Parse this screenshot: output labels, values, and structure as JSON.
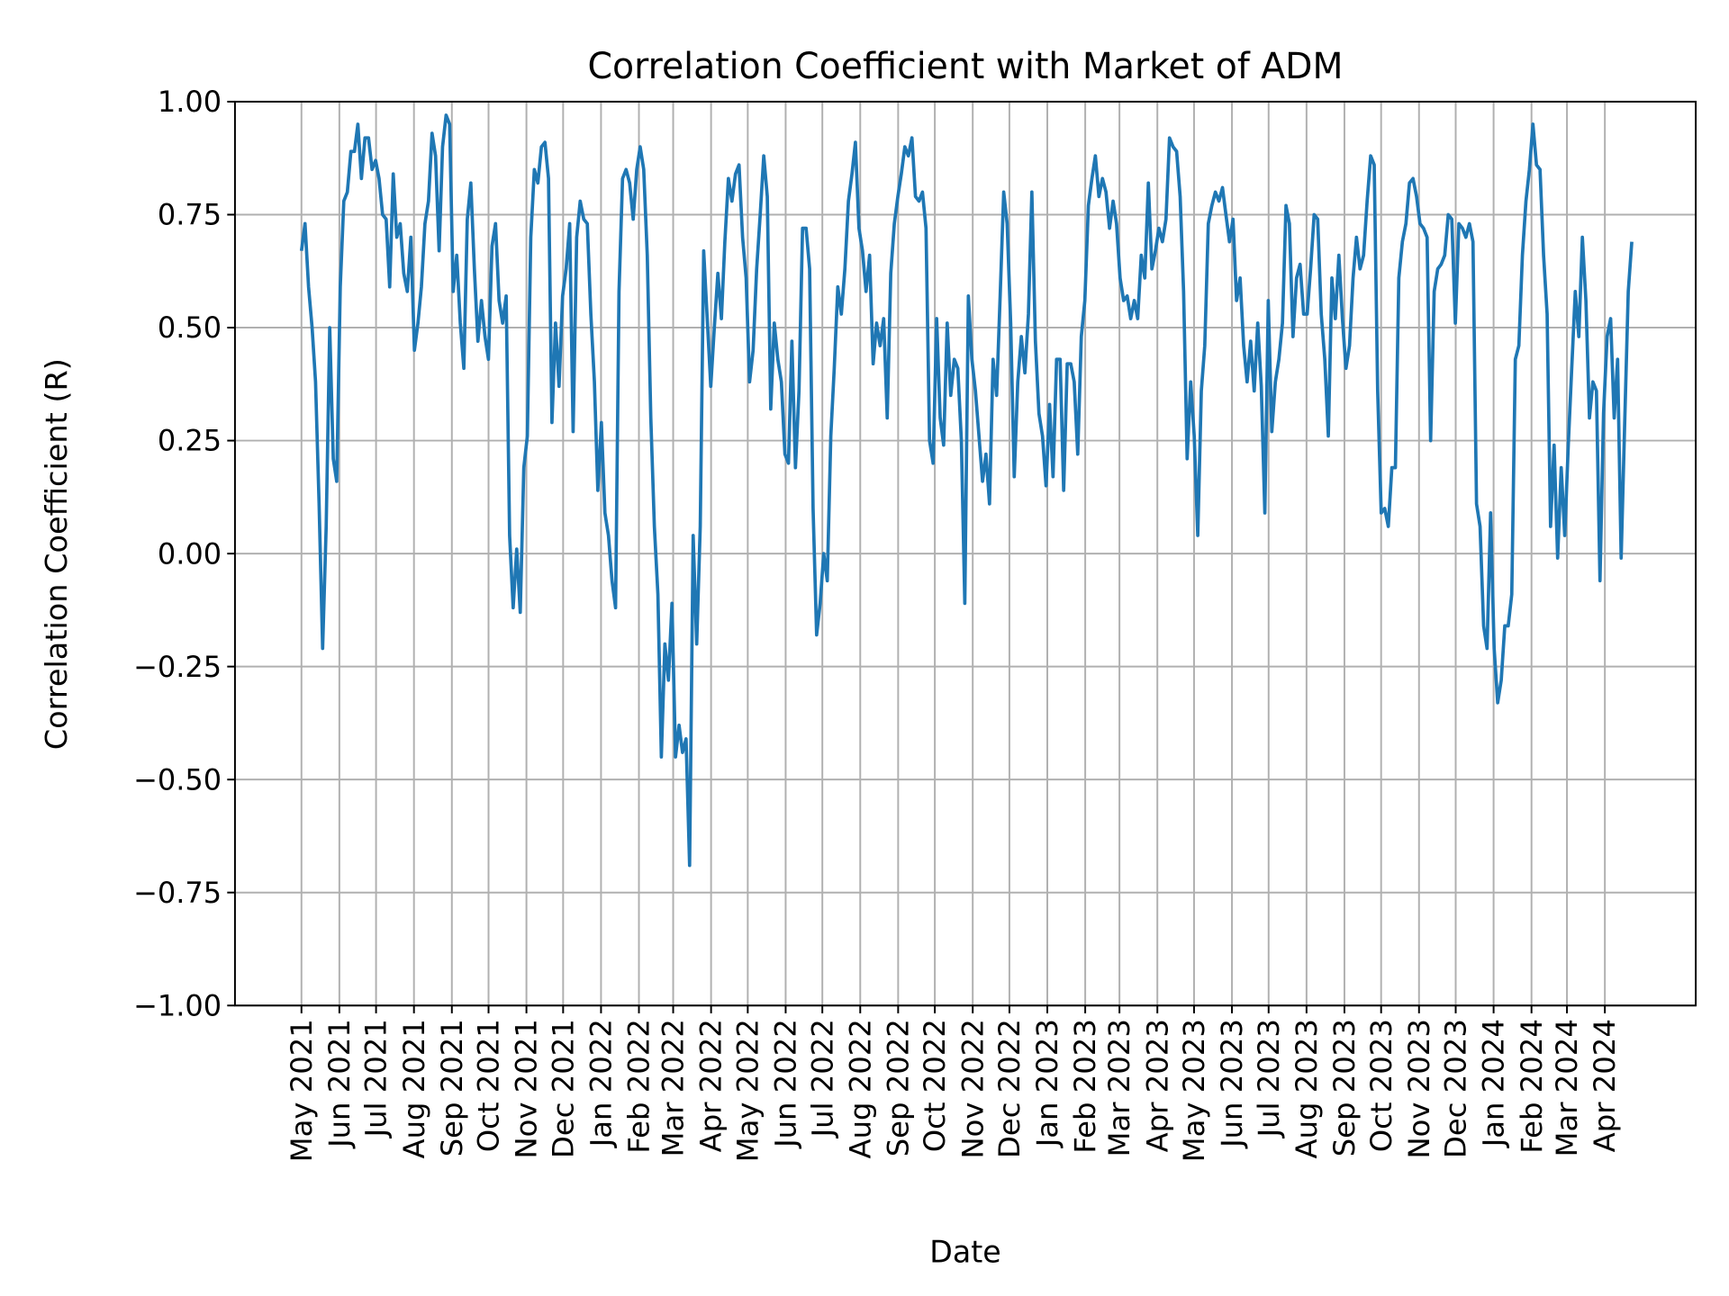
{
  "chart_data": {
    "type": "line",
    "title": "Correlation Coefficient with Market of ADM",
    "xlabel": "Date",
    "ylabel": "Correlation Coefficient (R)",
    "ylim": [
      -1.0,
      1.0
    ],
    "grid": true,
    "line_color": "#1f77b4",
    "yticks": [
      {
        "value": 1.0,
        "label": "1.00"
      },
      {
        "value": 0.75,
        "label": "0.75"
      },
      {
        "value": 0.5,
        "label": "0.50"
      },
      {
        "value": 0.25,
        "label": "0.25"
      },
      {
        "value": 0.0,
        "label": "0.00"
      },
      {
        "value": -0.25,
        "label": "−0.25"
      },
      {
        "value": -0.5,
        "label": "−0.50"
      },
      {
        "value": -0.75,
        "label": "−0.75"
      },
      {
        "value": -1.0,
        "label": "−1.00"
      }
    ],
    "xticks": [
      {
        "date": "2021-05-01",
        "label": "May 2021"
      },
      {
        "date": "2021-06-01",
        "label": "Jun 2021"
      },
      {
        "date": "2021-07-01",
        "label": "Jul 2021"
      },
      {
        "date": "2021-08-01",
        "label": "Aug 2021"
      },
      {
        "date": "2021-09-01",
        "label": "Sep 2021"
      },
      {
        "date": "2021-10-01",
        "label": "Oct 2021"
      },
      {
        "date": "2021-11-01",
        "label": "Nov 2021"
      },
      {
        "date": "2021-12-01",
        "label": "Dec 2021"
      },
      {
        "date": "2022-01-01",
        "label": "Jan 2022"
      },
      {
        "date": "2022-02-01",
        "label": "Feb 2022"
      },
      {
        "date": "2022-03-01",
        "label": "Mar 2022"
      },
      {
        "date": "2022-04-01",
        "label": "Apr 2022"
      },
      {
        "date": "2022-05-01",
        "label": "May 2022"
      },
      {
        "date": "2022-06-01",
        "label": "Jun 2022"
      },
      {
        "date": "2022-07-01",
        "label": "Jul 2022"
      },
      {
        "date": "2022-08-01",
        "label": "Aug 2022"
      },
      {
        "date": "2022-09-01",
        "label": "Sep 2022"
      },
      {
        "date": "2022-10-01",
        "label": "Oct 2022"
      },
      {
        "date": "2022-11-01",
        "label": "Nov 2022"
      },
      {
        "date": "2022-12-01",
        "label": "Dec 2022"
      },
      {
        "date": "2023-01-01",
        "label": "Jan 2023"
      },
      {
        "date": "2023-02-01",
        "label": "Feb 2023"
      },
      {
        "date": "2023-03-01",
        "label": "Mar 2023"
      },
      {
        "date": "2023-04-01",
        "label": "Apr 2023"
      },
      {
        "date": "2023-05-01",
        "label": "May 2023"
      },
      {
        "date": "2023-06-01",
        "label": "Jun 2023"
      },
      {
        "date": "2023-07-01",
        "label": "Jul 2023"
      },
      {
        "date": "2023-08-01",
        "label": "Aug 2023"
      },
      {
        "date": "2023-09-01",
        "label": "Sep 2023"
      },
      {
        "date": "2023-10-01",
        "label": "Oct 2023"
      },
      {
        "date": "2023-11-01",
        "label": "Nov 2023"
      },
      {
        "date": "2023-12-01",
        "label": "Dec 2023"
      },
      {
        "date": "2024-01-01",
        "label": "Jan 2024"
      },
      {
        "date": "2024-02-01",
        "label": "Feb 2024"
      },
      {
        "date": "2024-03-01",
        "label": "Mar 2024"
      },
      {
        "date": "2024-04-01",
        "label": "Apr 2024"
      }
    ],
    "series": [
      {
        "name": "R",
        "x_start": "2021-05-01",
        "x_end": "2024-04-23",
        "values": [
          0.67,
          0.73,
          0.59,
          0.5,
          0.38,
          0.11,
          -0.21,
          0.06,
          0.5,
          0.21,
          0.16,
          0.59,
          0.78,
          0.8,
          0.89,
          0.89,
          0.95,
          0.83,
          0.92,
          0.92,
          0.85,
          0.87,
          0.83,
          0.75,
          0.74,
          0.59,
          0.84,
          0.7,
          0.73,
          0.62,
          0.58,
          0.7,
          0.45,
          0.51,
          0.59,
          0.73,
          0.78,
          0.93,
          0.88,
          0.67,
          0.9,
          0.97,
          0.95,
          0.58,
          0.66,
          0.51,
          0.41,
          0.74,
          0.82,
          0.63,
          0.47,
          0.56,
          0.48,
          0.43,
          0.68,
          0.73,
          0.56,
          0.51,
          0.57,
          0.04,
          -0.12,
          0.01,
          -0.13,
          0.19,
          0.26,
          0.7,
          0.85,
          0.82,
          0.9,
          0.91,
          0.83,
          0.29,
          0.51,
          0.37,
          0.57,
          0.63,
          0.73,
          0.27,
          0.7,
          0.78,
          0.74,
          0.73,
          0.53,
          0.38,
          0.14,
          0.29,
          0.09,
          0.04,
          -0.06,
          -0.12,
          0.58,
          0.83,
          0.85,
          0.82,
          0.74,
          0.85,
          0.9,
          0.85,
          0.66,
          0.3,
          0.06,
          -0.09,
          -0.45,
          -0.2,
          -0.28,
          -0.11,
          -0.45,
          -0.38,
          -0.44,
          -0.41,
          -0.69,
          0.04,
          -0.2,
          0.06,
          0.67,
          0.52,
          0.37,
          0.5,
          0.62,
          0.52,
          0.69,
          0.83,
          0.78,
          0.84,
          0.86,
          0.7,
          0.61,
          0.38,
          0.45,
          0.63,
          0.75,
          0.88,
          0.79,
          0.32,
          0.51,
          0.43,
          0.38,
          0.22,
          0.2,
          0.47,
          0.19,
          0.36,
          0.72,
          0.72,
          0.63,
          0.1,
          -0.18,
          -0.11,
          0.0,
          -0.06,
          0.26,
          0.41,
          0.59,
          0.53,
          0.63,
          0.78,
          0.84,
          0.91,
          0.72,
          0.67,
          0.58,
          0.66,
          0.42,
          0.51,
          0.46,
          0.52,
          0.3,
          0.62,
          0.73,
          0.79,
          0.84,
          0.9,
          0.88,
          0.92,
          0.79,
          0.78,
          0.8,
          0.72,
          0.25,
          0.2,
          0.52,
          0.3,
          0.24,
          0.51,
          0.35,
          0.43,
          0.41,
          0.25,
          -0.11,
          0.57,
          0.43,
          0.36,
          0.26,
          0.16,
          0.22,
          0.11,
          0.43,
          0.35,
          0.57,
          0.8,
          0.73,
          0.51,
          0.17,
          0.38,
          0.48,
          0.4,
          0.53,
          0.8,
          0.47,
          0.31,
          0.26,
          0.15,
          0.33,
          0.17,
          0.43,
          0.43,
          0.14,
          0.42,
          0.42,
          0.38,
          0.22,
          0.48,
          0.56,
          0.77,
          0.83,
          0.88,
          0.79,
          0.83,
          0.8,
          0.72,
          0.78,
          0.73,
          0.61,
          0.56,
          0.57,
          0.52,
          0.56,
          0.52,
          0.66,
          0.61,
          0.82,
          0.63,
          0.67,
          0.72,
          0.69,
          0.74,
          0.92,
          0.9,
          0.89,
          0.79,
          0.58,
          0.21,
          0.38,
          0.26,
          0.04,
          0.36,
          0.46,
          0.73,
          0.77,
          0.8,
          0.78,
          0.81,
          0.75,
          0.69,
          0.74,
          0.56,
          0.61,
          0.46,
          0.38,
          0.47,
          0.36,
          0.51,
          0.37,
          0.09,
          0.56,
          0.27,
          0.38,
          0.43,
          0.51,
          0.77,
          0.73,
          0.48,
          0.61,
          0.64,
          0.53,
          0.53,
          0.63,
          0.75,
          0.74,
          0.53,
          0.43,
          0.26,
          0.61,
          0.52,
          0.66,
          0.52,
          0.41,
          0.46,
          0.61,
          0.7,
          0.63,
          0.66,
          0.78,
          0.88,
          0.86,
          0.36,
          0.09,
          0.1,
          0.06,
          0.19,
          0.19,
          0.61,
          0.69,
          0.73,
          0.82,
          0.83,
          0.79,
          0.73,
          0.72,
          0.7,
          0.25,
          0.58,
          0.63,
          0.64,
          0.66,
          0.75,
          0.74,
          0.51,
          0.73,
          0.72,
          0.7,
          0.73,
          0.69,
          0.11,
          0.06,
          -0.16,
          -0.21,
          0.09,
          -0.21,
          -0.33,
          -0.28,
          -0.16,
          -0.16,
          -0.09,
          0.43,
          0.46,
          0.66,
          0.78,
          0.85,
          0.95,
          0.86,
          0.85,
          0.66,
          0.53,
          0.06,
          0.24,
          -0.01,
          0.19,
          0.04,
          0.24,
          0.41,
          0.58,
          0.48,
          0.7,
          0.56,
          0.3,
          0.38,
          0.36,
          -0.06,
          0.31,
          0.48,
          0.52,
          0.3,
          0.43,
          -0.01,
          0.29,
          0.58,
          0.69
        ]
      }
    ]
  }
}
